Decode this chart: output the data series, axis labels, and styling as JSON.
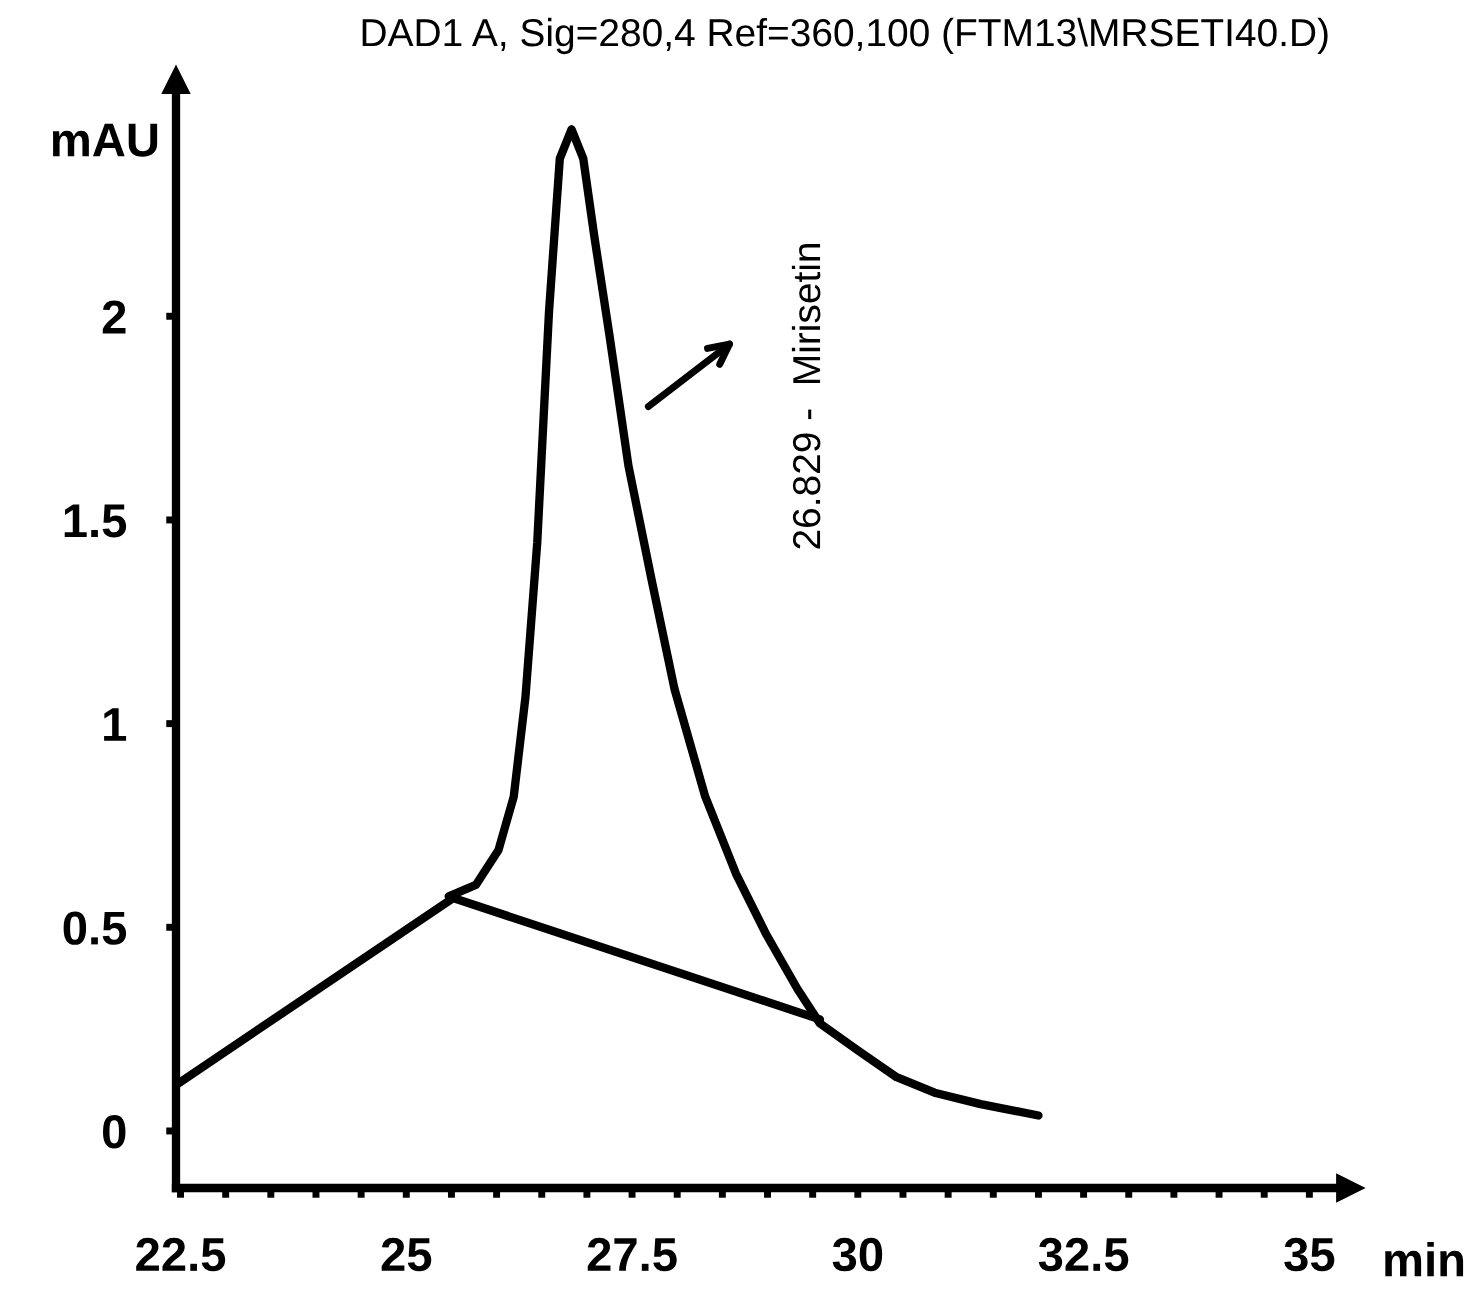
{
  "chart_data": {
    "type": "line",
    "title": "DAD1 A, Sig=280,4 Ref=360,100 (FTM13\\MRSETI40.D)",
    "xlabel": "min",
    "ylabel": "mAU",
    "series": [
      {
        "color": "#000000",
        "x": [
          25.47,
          25.77,
          26.02,
          26.19,
          26.32,
          26.45,
          26.58,
          26.7,
          26.83,
          26.96,
          27.08,
          27.25,
          27.46,
          27.72,
          27.97,
          28.31,
          28.65,
          28.99,
          29.33,
          29.58,
          30.0,
          30.43,
          30.85,
          31.36,
          32.0
        ],
        "values": [
          0.576,
          0.604,
          0.689,
          0.821,
          1.066,
          1.444,
          2.01,
          2.387,
          2.459,
          2.387,
          2.199,
          1.953,
          1.633,
          1.349,
          1.085,
          0.821,
          0.632,
          0.481,
          0.349,
          0.264,
          0.198,
          0.132,
          0.094,
          0.066,
          0.038
        ]
      },
      {
        "color": "#000000",
        "x": [
          22.45,
          25.52,
          29.58
        ],
        "values": [
          0.113,
          0.572,
          0.274
        ]
      }
    ],
    "annotations": [
      "26.829 -  Mirisetin"
    ],
    "xlim": [
      22.45,
      35.45
    ],
    "ylim": [
      -0.14,
      2.58
    ],
    "xticks": [
      22.5,
      {
        "value": 23,
        "label": null
      },
      {
        "value": 23.5,
        "label": null
      },
      {
        "value": 24,
        "label": null
      },
      {
        "value": 24.5,
        "label": null
      },
      25,
      {
        "value": 25.5,
        "label": null
      },
      {
        "value": 26,
        "label": null
      },
      {
        "value": 26.5,
        "label": null
      },
      {
        "value": 27,
        "label": null
      },
      27.5,
      {
        "value": 28,
        "label": null
      },
      {
        "value": 28.5,
        "label": null
      },
      {
        "value": 29,
        "label": null
      },
      {
        "value": 29.5,
        "label": null
      },
      30,
      {
        "value": 30.5,
        "label": null
      },
      {
        "value": 31,
        "label": null
      },
      {
        "value": 31.5,
        "label": null
      },
      {
        "value": 32,
        "label": null
      },
      32.5,
      {
        "value": 33,
        "label": null
      },
      {
        "value": 33.5,
        "label": null
      },
      {
        "value": 34,
        "label": null
      },
      {
        "value": 34.5,
        "label": null
      },
      35
    ],
    "yticks": [
      0,
      {
        "value": 0.5,
        "label": "0.5"
      },
      1,
      {
        "value": 1.5,
        "label": "1.5"
      },
      2
    ],
    "grid": false,
    "legend": false,
    "line_style": "solid",
    "marker": "none"
  }
}
